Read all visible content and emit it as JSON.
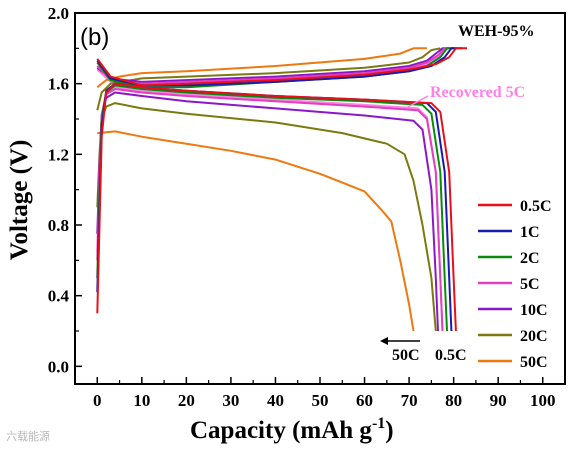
{
  "chart_data": {
    "type": "line",
    "panel_label": "(b)",
    "title": "WEH-95%",
    "xlabel": "Capacity (mAh g",
    "xlabel_sup": "-1",
    "xlabel_close": ")",
    "ylabel": "Voltage (V)",
    "xlim": [
      -5,
      105
    ],
    "ylim": [
      -0.1,
      2.0
    ],
    "x_ticks": [
      0,
      10,
      20,
      30,
      40,
      50,
      60,
      70,
      80,
      90,
      100
    ],
    "y_ticks": [
      0.0,
      0.4,
      0.8,
      1.2,
      1.6,
      2.0
    ],
    "y_tick_labels": [
      "0.0",
      "0.4",
      "0.8",
      "1.2",
      "1.6",
      "2.0"
    ],
    "legend_position": "right",
    "annotations": {
      "recovered": "Recovered 5C",
      "arrow_left_label": "50C",
      "arrow_right_label": "0.5C"
    },
    "watermark": "六载能源",
    "series": [
      {
        "name": "0.5C",
        "color": "#e8101a",
        "discharge": [
          [
            0,
            0.3
          ],
          [
            0.5,
            0.8
          ],
          [
            1,
            1.3
          ],
          [
            2,
            1.55
          ],
          [
            4,
            1.6
          ],
          [
            10,
            1.58
          ],
          [
            20,
            1.56
          ],
          [
            40,
            1.53
          ],
          [
            60,
            1.51
          ],
          [
            75,
            1.49
          ],
          [
            77,
            1.44
          ],
          [
            79,
            1.1
          ],
          [
            80,
            0.5
          ],
          [
            80.5,
            0.2
          ]
        ],
        "charge": [
          [
            0,
            1.74
          ],
          [
            3,
            1.64
          ],
          [
            10,
            1.59
          ],
          [
            20,
            1.6
          ],
          [
            40,
            1.62
          ],
          [
            60,
            1.65
          ],
          [
            70,
            1.68
          ],
          [
            76,
            1.71
          ],
          [
            79,
            1.75
          ],
          [
            80.5,
            1.8
          ],
          [
            83,
            1.8
          ]
        ]
      },
      {
        "name": "1C",
        "color": "#1a1ab0",
        "discharge": [
          [
            0,
            0.42
          ],
          [
            0.5,
            0.9
          ],
          [
            1,
            1.35
          ],
          [
            2,
            1.56
          ],
          [
            4,
            1.6
          ],
          [
            10,
            1.58
          ],
          [
            20,
            1.56
          ],
          [
            40,
            1.53
          ],
          [
            60,
            1.51
          ],
          [
            74,
            1.49
          ],
          [
            76,
            1.44
          ],
          [
            78,
            1.1
          ],
          [
            79,
            0.5
          ],
          [
            79.5,
            0.2
          ]
        ],
        "charge": [
          [
            0,
            1.73
          ],
          [
            3,
            1.63
          ],
          [
            10,
            1.59
          ],
          [
            20,
            1.59
          ],
          [
            40,
            1.61
          ],
          [
            60,
            1.64
          ],
          [
            70,
            1.67
          ],
          [
            75,
            1.7
          ],
          [
            78,
            1.75
          ],
          [
            79.5,
            1.8
          ],
          [
            82,
            1.8
          ]
        ]
      },
      {
        "name": "2C",
        "color": "#0a8a0a",
        "discharge": [
          [
            0,
            0.5
          ],
          [
            0.5,
            1.0
          ],
          [
            1,
            1.4
          ],
          [
            2,
            1.55
          ],
          [
            4,
            1.59
          ],
          [
            10,
            1.57
          ],
          [
            20,
            1.55
          ],
          [
            40,
            1.52
          ],
          [
            60,
            1.5
          ],
          [
            73,
            1.48
          ],
          [
            75,
            1.43
          ],
          [
            77,
            1.1
          ],
          [
            78,
            0.5
          ],
          [
            78.5,
            0.2
          ]
        ],
        "charge": [
          [
            0,
            1.72
          ],
          [
            3,
            1.62
          ],
          [
            10,
            1.58
          ],
          [
            20,
            1.58
          ],
          [
            40,
            1.61
          ],
          [
            60,
            1.64
          ],
          [
            70,
            1.67
          ],
          [
            74,
            1.7
          ],
          [
            77,
            1.75
          ],
          [
            78.5,
            1.8
          ],
          [
            81,
            1.8
          ]
        ]
      },
      {
        "name": "5C",
        "color": "#e040c0",
        "discharge": [
          [
            0,
            0.6
          ],
          [
            0.5,
            1.1
          ],
          [
            1,
            1.42
          ],
          [
            2,
            1.54
          ],
          [
            4,
            1.57
          ],
          [
            10,
            1.55
          ],
          [
            20,
            1.53
          ],
          [
            40,
            1.5
          ],
          [
            60,
            1.47
          ],
          [
            72,
            1.45
          ],
          [
            74,
            1.4
          ],
          [
            76,
            1.1
          ],
          [
            77,
            0.5
          ],
          [
            77.5,
            0.2
          ]
        ],
        "charge": [
          [
            0,
            1.7
          ],
          [
            3,
            1.62
          ],
          [
            10,
            1.6
          ],
          [
            20,
            1.61
          ],
          [
            40,
            1.63
          ],
          [
            60,
            1.66
          ],
          [
            70,
            1.69
          ],
          [
            74,
            1.72
          ],
          [
            76.5,
            1.76
          ],
          [
            78,
            1.8
          ],
          [
            80,
            1.8
          ]
        ]
      },
      {
        "name": "10C",
        "color": "#8a18c8",
        "discharge": [
          [
            0,
            0.75
          ],
          [
            0.5,
            1.15
          ],
          [
            1,
            1.42
          ],
          [
            2,
            1.52
          ],
          [
            4,
            1.55
          ],
          [
            10,
            1.53
          ],
          [
            20,
            1.5
          ],
          [
            40,
            1.46
          ],
          [
            60,
            1.42
          ],
          [
            71,
            1.39
          ],
          [
            73,
            1.34
          ],
          [
            75,
            1.0
          ],
          [
            76,
            0.5
          ],
          [
            76.5,
            0.2
          ]
        ],
        "charge": [
          [
            0,
            1.69
          ],
          [
            3,
            1.63
          ],
          [
            10,
            1.61
          ],
          [
            20,
            1.62
          ],
          [
            40,
            1.64
          ],
          [
            60,
            1.67
          ],
          [
            70,
            1.7
          ],
          [
            74,
            1.73
          ],
          [
            76,
            1.77
          ],
          [
            77.5,
            1.8
          ],
          [
            79,
            1.8
          ]
        ]
      },
      {
        "name": "20C",
        "color": "#7a7a10",
        "discharge": [
          [
            0,
            0.9
          ],
          [
            0.5,
            1.2
          ],
          [
            1,
            1.4
          ],
          [
            2,
            1.47
          ],
          [
            4,
            1.49
          ],
          [
            10,
            1.46
          ],
          [
            20,
            1.43
          ],
          [
            40,
            1.38
          ],
          [
            55,
            1.32
          ],
          [
            65,
            1.26
          ],
          [
            69,
            1.2
          ],
          [
            71,
            1.05
          ],
          [
            73,
            0.8
          ],
          [
            75,
            0.5
          ],
          [
            76,
            0.2
          ]
        ],
        "charge": [
          [
            0,
            1.45
          ],
          [
            1,
            1.55
          ],
          [
            3,
            1.6
          ],
          [
            10,
            1.63
          ],
          [
            20,
            1.64
          ],
          [
            40,
            1.66
          ],
          [
            60,
            1.69
          ],
          [
            70,
            1.72
          ],
          [
            73,
            1.75
          ],
          [
            75,
            1.79
          ],
          [
            77,
            1.8
          ]
        ]
      },
      {
        "name": "50C",
        "color": "#f07810",
        "discharge": [
          [
            0,
            1.32
          ],
          [
            4,
            1.33
          ],
          [
            10,
            1.3
          ],
          [
            20,
            1.26
          ],
          [
            30,
            1.22
          ],
          [
            40,
            1.17
          ],
          [
            50,
            1.09
          ],
          [
            55,
            1.04
          ],
          [
            60,
            0.99
          ],
          [
            64,
            0.88
          ],
          [
            66,
            0.82
          ],
          [
            68,
            0.6
          ],
          [
            70,
            0.35
          ],
          [
            71,
            0.2
          ]
        ],
        "charge": [
          [
            0,
            1.58
          ],
          [
            2,
            1.62
          ],
          [
            5,
            1.64
          ],
          [
            10,
            1.66
          ],
          [
            20,
            1.67
          ],
          [
            40,
            1.7
          ],
          [
            60,
            1.74
          ],
          [
            68,
            1.77
          ],
          [
            71,
            1.8
          ],
          [
            74,
            1.8
          ]
        ]
      }
    ],
    "recovered_5c": {
      "name": "Recovered 5C",
      "color": "#ff80e8",
      "discharge": [
        [
          0,
          0.65
        ],
        [
          0.5,
          1.1
        ],
        [
          1,
          1.43
        ],
        [
          2,
          1.55
        ],
        [
          4,
          1.58
        ],
        [
          10,
          1.56
        ],
        [
          20,
          1.54
        ],
        [
          40,
          1.51
        ],
        [
          60,
          1.48
        ],
        [
          72,
          1.46
        ],
        [
          74,
          1.41
        ],
        [
          76,
          1.1
        ],
        [
          77,
          0.5
        ],
        [
          77.5,
          0.2
        ]
      ],
      "charge": [
        [
          0,
          1.68
        ],
        [
          3,
          1.61
        ],
        [
          10,
          1.59
        ],
        [
          20,
          1.6
        ],
        [
          40,
          1.62
        ],
        [
          60,
          1.65
        ],
        [
          70,
          1.68
        ],
        [
          74,
          1.71
        ],
        [
          76.5,
          1.75
        ],
        [
          78,
          1.8
        ],
        [
          80,
          1.8
        ]
      ]
    }
  }
}
